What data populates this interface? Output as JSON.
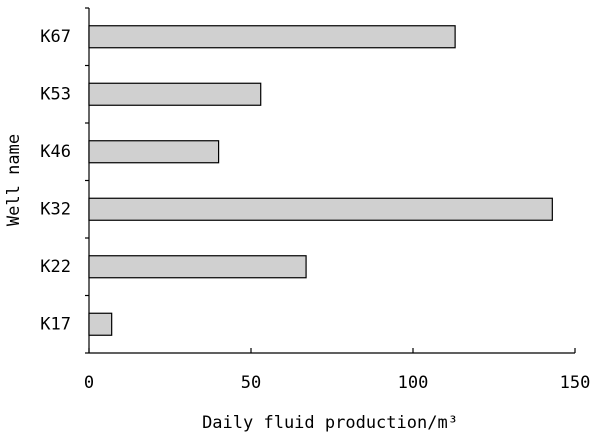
{
  "chart_data": {
    "type": "bar",
    "orientation": "horizontal",
    "categories": [
      "K67",
      "K53",
      "K46",
      "K32",
      "K22",
      "K17"
    ],
    "values": [
      113,
      53,
      40,
      143,
      67,
      7
    ],
    "color": "#d0d0d0",
    "xlabel": "Daily fluid production/m³",
    "ylabel": "Well name",
    "xlim": [
      0,
      150
    ],
    "xticks": [
      0,
      50,
      100,
      150
    ]
  }
}
